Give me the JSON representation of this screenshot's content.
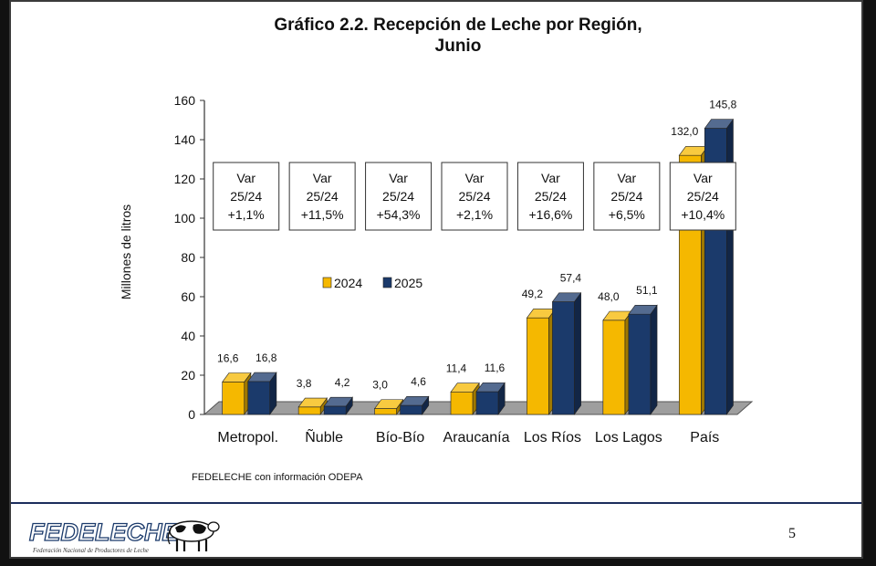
{
  "title_line1": "Gráfico 2.2. Recepción de Leche por Región,",
  "title_line2": "Junio",
  "source": "FEDELECHE con información ODEPA",
  "page_number": "5",
  "logo": {
    "text": "FEDELECHE",
    "subtitle": "Federación Nacional de Productores de Leche"
  },
  "colors": {
    "series_2024": "#f5b800",
    "series_2025": "#1b3a6b",
    "floor": "#9e9e9e",
    "rule": "#1b2d5c"
  },
  "chart_data": {
    "type": "bar",
    "title": "Gráfico 2.2. Recepción de Leche por Región, Junio",
    "xlabel": "",
    "ylabel": "Millones de litros",
    "ylim": [
      0,
      160
    ],
    "yticks": [
      0,
      20,
      40,
      60,
      80,
      100,
      120,
      140,
      160
    ],
    "yticks_labels": [
      "0",
      "20",
      "40",
      "60",
      "80",
      "100",
      "120",
      "140",
      "160"
    ],
    "categories": [
      "Metropol.",
      "Ñuble",
      "Bío-Bío",
      "Araucanía",
      "Los Ríos",
      "Los Lagos",
      "País"
    ],
    "series": [
      {
        "name": "2024",
        "values": [
          16.6,
          3.8,
          3.0,
          11.4,
          49.2,
          48.0,
          132.0
        ],
        "labels": [
          "16,6",
          "3,8",
          "3,0",
          "11,4",
          "49,2",
          "48,0",
          "132,0"
        ]
      },
      {
        "name": "2025",
        "values": [
          16.8,
          4.2,
          4.6,
          11.6,
          57.4,
          51.1,
          145.8
        ],
        "labels": [
          "16,8",
          "4,2",
          "4,6",
          "11,6",
          "57,4",
          "51,1",
          "145,8"
        ]
      }
    ],
    "annotations": [
      {
        "line1": "Var",
        "line2": "25/24",
        "line3": "+1,1%"
      },
      {
        "line1": "Var",
        "line2": "25/24",
        "line3": "+11,5%"
      },
      {
        "line1": "Var",
        "line2": "25/24",
        "line3": "+54,3%"
      },
      {
        "line1": "Var",
        "line2": "25/24",
        "line3": "+2,1%"
      },
      {
        "line1": "Var",
        "line2": "25/24",
        "line3": "+16,6%"
      },
      {
        "line1": "Var",
        "line2": "25/24",
        "line3": "+6,5%"
      },
      {
        "line1": "Var",
        "line2": "25/24",
        "line3": "+10,4%"
      }
    ],
    "legend_position": "center",
    "grid": false,
    "style": "3d"
  }
}
